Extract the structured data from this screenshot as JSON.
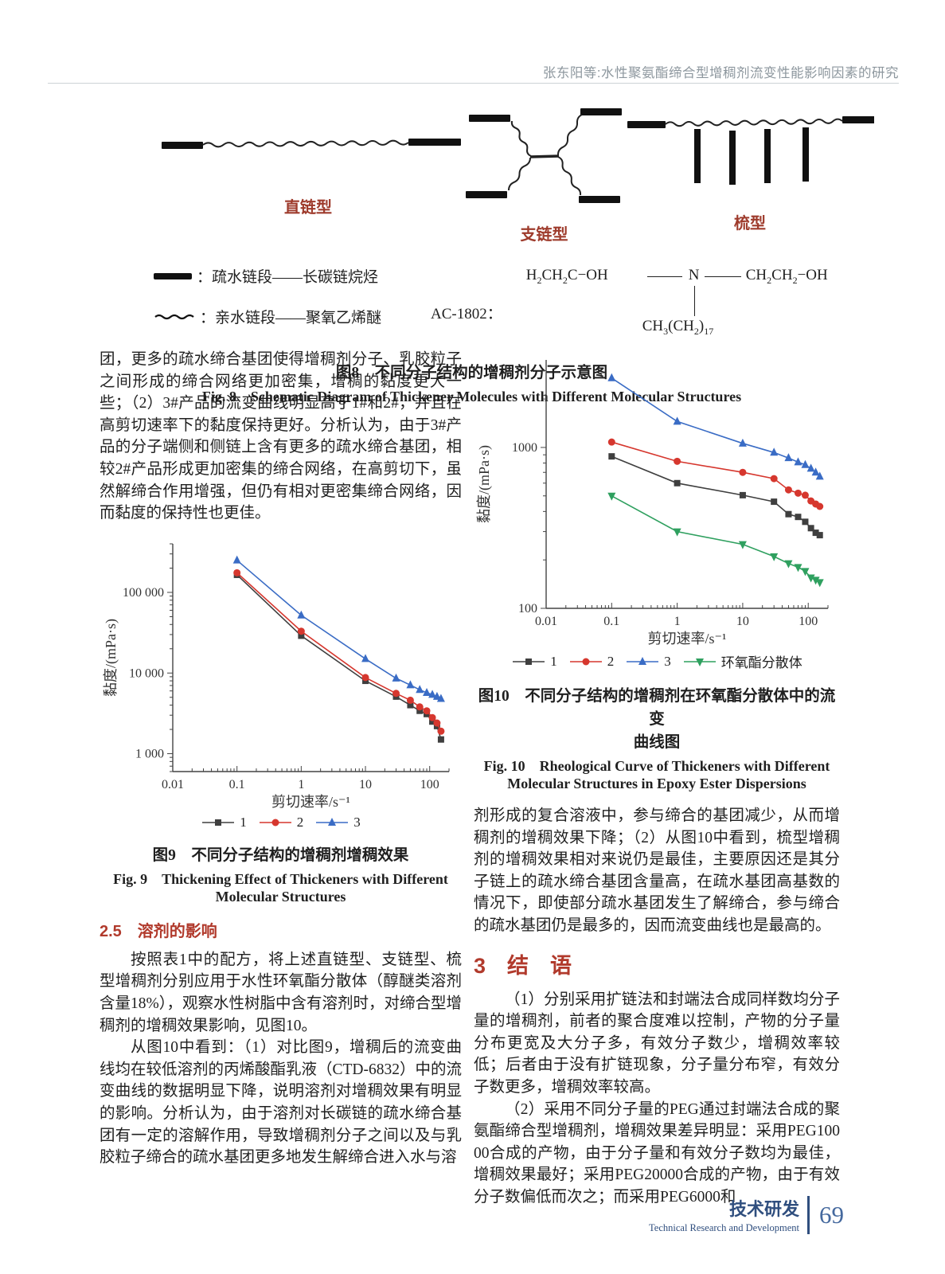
{
  "header": {
    "running_title": "张东阳等:水性聚氨酯缔合型增稠剂流变性能影响因素的研究"
  },
  "figure8": {
    "labels": {
      "linear": "直链型",
      "branched": "支链型",
      "comb": "梳型"
    },
    "legend": [
      {
        "symbol": "bar-glyph",
        "text": "：疏水链段——长碳链烷烃"
      },
      {
        "symbol": "wave-glyph",
        "text": "：亲水链段——聚氧乙烯醚"
      }
    ],
    "formula": {
      "name": "AC-1802：",
      "left": [
        {
          "t": "H"
        },
        {
          "t": "2",
          "sub": true
        },
        {
          "t": "CH"
        },
        {
          "t": "2",
          "sub": true
        },
        {
          "t": "C−OH"
        }
      ],
      "center": [
        {
          "t": "N"
        }
      ],
      "right": [
        {
          "t": "CH"
        },
        {
          "t": "2",
          "sub": true
        },
        {
          "t": "CH"
        },
        {
          "t": "2",
          "sub": true
        },
        {
          "t": "−OH"
        }
      ],
      "bottom": [
        {
          "t": "CH"
        },
        {
          "t": "3",
          "sub": true
        },
        {
          "t": "(CH"
        },
        {
          "t": "2",
          "sub": true
        },
        {
          "t": ")"
        },
        {
          "t": "17",
          "sub": true
        }
      ]
    },
    "caption_zh": "图8　不同分子结构的增稠剂分子示意图",
    "caption_en": "Fig. 8　Schematic Diagram of Thickener Molecules with Different Molecular Structures"
  },
  "left_column": {
    "para_continuation": "团，更多的疏水缔合基团使得增稠剂分子、乳胶粒子之间形成的缔合网络更加密集，增稠的黏度更大一些；（2）3#产品的流变曲线明显高于1#和2#，并且在高剪切速率下的黏度保持更好。分析认为，由于3#产品的分子端侧和侧链上含有更多的疏水缔合基团，相较2#产品形成更加密集的缔合网络，在高剪切下，虽然解缔合作用增强，但仍有相对更密集缔合网络，因而黏度的保持性也更佳。",
    "fig9_caption_zh": "图9　不同分子结构的增稠剂增稠效果",
    "fig9_caption_en": "Fig. 9　Thickening Effect of Thickeners with Different\nMolecular Structures",
    "section_2_5": "2.5　溶剂的影响",
    "para_a": "按照表1中的配方，将上述直链型、支链型、梳型增稠剂分别应用于水性环氧酯分散体（醇醚类溶剂含量18%），观察水性树脂中含有溶剂时，对缔合型增稠剂的增稠效果影响，见图10。",
    "para_b": "从图10中看到：（1）对比图9，增稠后的流变曲线均在较低溶剂的丙烯酸酯乳液（CTD-6832）中的流变曲线的数据明显下降，说明溶剂对增稠效果有明显的影响。分析认为，由于溶剂对长碳链的疏水缔合基团有一定的溶解作用，导致增稠剂分子之间以及与乳胶粒子缔合的疏水基团更多地发生解缔合进入水与溶"
  },
  "right_column": {
    "fig10_caption_zh": "图10　不同分子结构的增稠剂在环氧酯分散体中的流变\n曲线图",
    "fig10_caption_en": "Fig. 10　Rheological Curve of Thickeners with Different\nMolecular Structures in Epoxy Ester Dispersions",
    "para_continuation": "剂形成的复合溶液中，参与缔合的基团减少，从而增稠剂的增稠效果下降；（2）从图10中看到，梳型增稠剂的增稠效果相对来说仍是最佳，主要原因还是其分子链上的疏水缔合基团含量高，在疏水基团高基数的情况下，即使部分疏水基团发生了解缔合，参与缔合的疏水基团仍是最多的，因而流变曲线也是最高的。",
    "section_3": "3　结　语",
    "para_1": "（1）分别采用扩链法和封端法合成同样数均分子量的增稠剂，前者的聚合度难以控制，产物的分子量分布更宽及大分子多，有效分子数少，增稠效率较低；后者由于没有扩链现象，分子量分布窄，有效分子数更多，增稠效率较高。",
    "para_2": "（2）采用不同分子量的PEG通过封端法合成的聚氨酯缔合型增稠剂，增稠效果差异明显：采用PEG10000合成的产物，由于分子量和有效分子数均为最佳，增稠效果最好；采用PEG20000合成的产物，由于有效分子数偏低而次之；而采用PEG6000和"
  },
  "footer": {
    "section_zh": "技术研发",
    "section_en": "Technical Research and Development",
    "page_number": "69"
  },
  "chart_data": [
    {
      "id": "fig9",
      "type": "line",
      "xscale": "log",
      "yscale": "log",
      "xlabel": "剪切速率/s⁻¹",
      "ylabel": "黏度/(mPa·s)",
      "xlim": [
        0.01,
        200
      ],
      "ylim": [
        600,
        400000
      ],
      "xticks": [
        0.01,
        0.1,
        1,
        10,
        100
      ],
      "xtick_labels": [
        "0.01",
        "0.1",
        "1",
        "10",
        "100"
      ],
      "yticks": [
        1000,
        10000,
        100000
      ],
      "ytick_labels": [
        "1 000",
        "10 000",
        "100 000"
      ],
      "grid": false,
      "legend_position": "bottom",
      "x": [
        0.1,
        1,
        10,
        30,
        50,
        70,
        90,
        110,
        130,
        150
      ],
      "series": [
        {
          "name": "1",
          "marker": "square",
          "color": "#3f3f3f",
          "values": [
            165000,
            29000,
            8000,
            5100,
            4000,
            3400,
            3100,
            2500,
            2200,
            1500
          ]
        },
        {
          "name": "2",
          "marker": "circle",
          "color": "#d6372e",
          "values": [
            175000,
            33000,
            8800,
            5600,
            4600,
            3800,
            3400,
            2800,
            2400,
            1900
          ]
        },
        {
          "name": "3",
          "marker": "triangle-up",
          "color": "#3a6cc5",
          "values": [
            250000,
            52000,
            15000,
            8600,
            7100,
            6200,
            5700,
            5400,
            5100,
            4800
          ]
        }
      ]
    },
    {
      "id": "fig10",
      "type": "line",
      "xscale": "log",
      "yscale": "log",
      "xlabel": "剪切速率/s⁻¹",
      "ylabel": "黏度/(mPa·s)",
      "xlim": [
        0.01,
        200
      ],
      "ylim": [
        100,
        3500
      ],
      "xticks": [
        0.01,
        0.1,
        1,
        10,
        100
      ],
      "xtick_labels": [
        "0.01",
        "0.1",
        "1",
        "10",
        "100"
      ],
      "yticks": [
        100,
        1000
      ],
      "ytick_labels": [
        "100",
        "1000"
      ],
      "grid": false,
      "legend_position": "bottom",
      "x": [
        0.1,
        1,
        10,
        30,
        50,
        70,
        90,
        110,
        130,
        150
      ],
      "series": [
        {
          "name": "1",
          "marker": "square",
          "color": "#3f3f3f",
          "values": [
            880,
            600,
            505,
            460,
            385,
            370,
            345,
            315,
            295,
            285
          ]
        },
        {
          "name": "2",
          "marker": "circle",
          "color": "#d6372e",
          "values": [
            1080,
            820,
            700,
            640,
            545,
            520,
            505,
            465,
            445,
            430
          ]
        },
        {
          "name": "3",
          "marker": "triangle-up",
          "color": "#3a6cc5",
          "values": [
            2700,
            1450,
            1060,
            930,
            860,
            810,
            780,
            740,
            700,
            660
          ]
        },
        {
          "name": "环氧酯分散体",
          "marker": "triangle-down",
          "color": "#2fa05f",
          "values": [
            500,
            300,
            250,
            210,
            190,
            180,
            170,
            155,
            150,
            145
          ]
        }
      ]
    }
  ]
}
